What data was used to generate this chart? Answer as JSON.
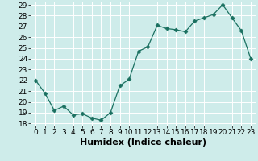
{
  "x": [
    0,
    1,
    2,
    3,
    4,
    5,
    6,
    7,
    8,
    9,
    10,
    11,
    12,
    13,
    14,
    15,
    16,
    17,
    18,
    19,
    20,
    21,
    22,
    23
  ],
  "y": [
    22,
    20.8,
    19.2,
    19.6,
    18.8,
    18.9,
    18.5,
    18.3,
    19.0,
    21.5,
    22.1,
    24.7,
    25.1,
    27.1,
    26.8,
    26.7,
    26.5,
    27.5,
    27.8,
    28.1,
    29.0,
    27.8,
    26.6,
    24.0
  ],
  "xlabel": "Humidex (Indice chaleur)",
  "ylim": [
    18,
    29
  ],
  "xlim": [
    -0.5,
    23.5
  ],
  "yticks": [
    18,
    19,
    20,
    21,
    22,
    23,
    24,
    25,
    26,
    27,
    28,
    29
  ],
  "xticks": [
    0,
    1,
    2,
    3,
    4,
    5,
    6,
    7,
    8,
    9,
    10,
    11,
    12,
    13,
    14,
    15,
    16,
    17,
    18,
    19,
    20,
    21,
    22,
    23
  ],
  "line_color": "#1a7060",
  "marker": "D",
  "marker_size": 2.5,
  "bg_color": "#ceecea",
  "grid_color": "#ffffff",
  "xlabel_fontsize": 8,
  "tick_fontsize": 6.5
}
